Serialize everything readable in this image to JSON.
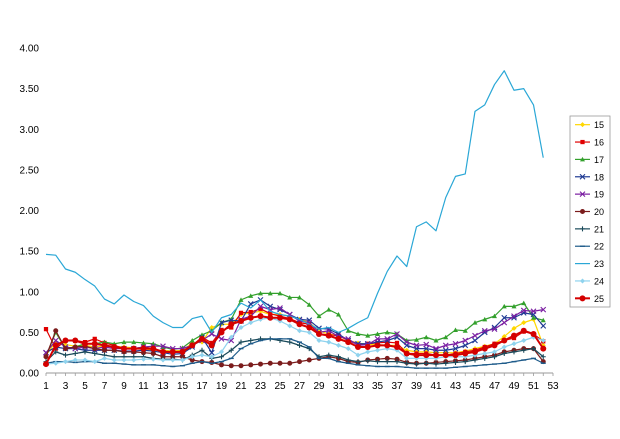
{
  "chart_data": {
    "type": "line",
    "x": [
      1,
      2,
      3,
      4,
      5,
      6,
      7,
      8,
      9,
      10,
      11,
      12,
      13,
      14,
      15,
      16,
      17,
      18,
      19,
      20,
      21,
      22,
      23,
      24,
      25,
      26,
      27,
      28,
      29,
      30,
      31,
      32,
      33,
      34,
      35,
      36,
      37,
      38,
      39,
      40,
      41,
      42,
      43,
      44,
      45,
      46,
      47,
      48,
      49,
      50,
      51,
      52
    ],
    "xticks": [
      1,
      3,
      5,
      7,
      9,
      11,
      13,
      15,
      17,
      19,
      21,
      23,
      25,
      27,
      29,
      31,
      33,
      35,
      37,
      39,
      41,
      43,
      45,
      47,
      49,
      51,
      53
    ],
    "yticks": [
      "0.00",
      "0.50",
      "1.00",
      "1.50",
      "2.00",
      "2.50",
      "3.00",
      "3.50",
      "4.00"
    ],
    "xlim": [
      1,
      53
    ],
    "ylim": [
      0,
      4
    ],
    "grid": false,
    "legend_position": "right",
    "series": [
      {
        "name": "15",
        "color": "#ffd700",
        "marker": "diamond",
        "values": [
          0.22,
          0.38,
          0.35,
          0.33,
          0.34,
          0.32,
          0.33,
          0.33,
          0.32,
          0.31,
          0.3,
          0.28,
          0.28,
          0.27,
          0.28,
          0.37,
          0.38,
          0.56,
          0.6,
          0.6,
          0.72,
          0.74,
          0.76,
          0.72,
          0.72,
          0.7,
          0.66,
          0.62,
          0.52,
          0.48,
          0.46,
          0.4,
          0.37,
          0.35,
          0.35,
          0.34,
          0.34,
          0.28,
          0.26,
          0.26,
          0.25,
          0.25,
          0.25,
          0.27,
          0.3,
          0.33,
          0.36,
          0.45,
          0.55,
          0.62,
          0.66,
          0.34
        ]
      },
      {
        "name": "16",
        "color": "#e00000",
        "marker": "square",
        "values": [
          0.54,
          0.3,
          0.4,
          0.4,
          0.38,
          0.42,
          0.37,
          0.34,
          0.3,
          0.3,
          0.32,
          0.3,
          0.26,
          0.25,
          0.26,
          0.34,
          0.44,
          0.37,
          0.53,
          0.56,
          0.74,
          0.75,
          0.79,
          0.73,
          0.7,
          0.67,
          0.62,
          0.6,
          0.48,
          0.47,
          0.46,
          0.4,
          0.35,
          0.36,
          0.37,
          0.38,
          0.37,
          0.24,
          0.24,
          0.24,
          0.22,
          0.22,
          0.24,
          0.26,
          0.28,
          0.32,
          0.36,
          0.4,
          0.43,
          0.51,
          0.48,
          0.39
        ]
      },
      {
        "name": "17",
        "color": "#33a02c",
        "marker": "triangle",
        "values": [
          0.21,
          0.5,
          0.3,
          0.32,
          0.36,
          0.36,
          0.38,
          0.36,
          0.38,
          0.38,
          0.37,
          0.36,
          0.32,
          0.29,
          0.31,
          0.4,
          0.47,
          0.52,
          0.62,
          0.66,
          0.9,
          0.95,
          0.98,
          0.98,
          0.98,
          0.93,
          0.93,
          0.84,
          0.7,
          0.78,
          0.72,
          0.52,
          0.48,
          0.46,
          0.48,
          0.5,
          0.48,
          0.4,
          0.41,
          0.44,
          0.4,
          0.44,
          0.53,
          0.52,
          0.62,
          0.66,
          0.7,
          0.82,
          0.82,
          0.86,
          0.68,
          0.65
        ]
      },
      {
        "name": "18",
        "color": "#1f3a93",
        "marker": "x",
        "values": [
          0.25,
          0.32,
          0.3,
          0.3,
          0.28,
          0.28,
          0.28,
          0.28,
          0.27,
          0.27,
          0.28,
          0.27,
          0.25,
          0.23,
          0.24,
          0.32,
          0.44,
          0.25,
          0.62,
          0.65,
          0.64,
          0.85,
          0.9,
          0.82,
          0.78,
          0.72,
          0.66,
          0.65,
          0.55,
          0.54,
          0.48,
          0.4,
          0.36,
          0.36,
          0.38,
          0.4,
          0.44,
          0.34,
          0.3,
          0.3,
          0.28,
          0.28,
          0.3,
          0.34,
          0.4,
          0.5,
          0.56,
          0.68,
          0.68,
          0.74,
          0.72,
          0.58
        ]
      },
      {
        "name": "19",
        "color": "#7b1fa2",
        "marker": "x",
        "values": [
          0.25,
          0.4,
          0.32,
          0.3,
          0.32,
          0.3,
          0.32,
          0.3,
          0.3,
          0.3,
          0.32,
          0.33,
          0.33,
          0.3,
          0.3,
          0.34,
          0.4,
          0.48,
          0.42,
          0.4,
          0.66,
          0.7,
          0.82,
          0.78,
          0.8,
          0.72,
          0.64,
          0.62,
          0.5,
          0.52,
          0.45,
          0.42,
          0.34,
          0.35,
          0.42,
          0.42,
          0.48,
          0.38,
          0.34,
          0.35,
          0.3,
          0.34,
          0.36,
          0.4,
          0.46,
          0.52,
          0.54,
          0.62,
          0.7,
          0.77,
          0.76,
          0.78
        ]
      },
      {
        "name": "20",
        "color": "#7b1c1c",
        "marker": "circle",
        "values": [
          0.2,
          0.52,
          0.3,
          0.32,
          0.33,
          0.3,
          0.28,
          0.28,
          0.26,
          0.26,
          0.25,
          0.24,
          0.2,
          0.2,
          0.2,
          0.16,
          0.14,
          0.13,
          0.1,
          0.09,
          0.09,
          0.1,
          0.11,
          0.12,
          0.12,
          0.12,
          0.14,
          0.16,
          0.18,
          0.2,
          0.18,
          0.14,
          0.13,
          0.16,
          0.17,
          0.18,
          0.17,
          0.13,
          0.12,
          0.12,
          0.13,
          0.14,
          0.15,
          0.16,
          0.18,
          0.2,
          0.22,
          0.26,
          0.28,
          0.3,
          0.3,
          0.14
        ]
      },
      {
        "name": "21",
        "color": "#1a4a5a",
        "marker": "plus",
        "values": [
          0.14,
          0.26,
          0.22,
          0.24,
          0.26,
          0.24,
          0.22,
          0.2,
          0.2,
          0.2,
          0.2,
          0.18,
          0.17,
          0.17,
          0.16,
          0.22,
          0.28,
          0.18,
          0.2,
          0.28,
          0.38,
          0.4,
          0.42,
          0.42,
          0.4,
          0.38,
          0.34,
          0.3,
          0.2,
          0.22,
          0.2,
          0.16,
          0.14,
          0.15,
          0.14,
          0.14,
          0.14,
          0.12,
          0.11,
          0.12,
          0.11,
          0.12,
          0.13,
          0.14,
          0.16,
          0.18,
          0.2,
          0.24,
          0.26,
          0.28,
          0.3,
          0.2
        ]
      },
      {
        "name": "22",
        "color": "#1e5b8a",
        "marker": "dash",
        "values": [
          0.12,
          0.14,
          0.14,
          0.13,
          0.14,
          0.14,
          0.12,
          0.12,
          0.11,
          0.1,
          0.1,
          0.1,
          0.09,
          0.08,
          0.09,
          0.12,
          0.14,
          0.12,
          0.14,
          0.18,
          0.3,
          0.36,
          0.4,
          0.42,
          0.42,
          0.42,
          0.38,
          0.32,
          0.18,
          0.18,
          0.14,
          0.12,
          0.1,
          0.09,
          0.08,
          0.08,
          0.08,
          0.07,
          0.06,
          0.06,
          0.06,
          0.06,
          0.07,
          0.08,
          0.09,
          0.1,
          0.11,
          0.12,
          0.14,
          0.16,
          0.18,
          0.12
        ]
      },
      {
        "name": "23",
        "color": "#2aa7d6",
        "marker": "none",
        "values": [
          1.46,
          1.45,
          1.28,
          1.24,
          1.15,
          1.07,
          0.91,
          0.85,
          0.96,
          0.88,
          0.83,
          0.7,
          0.62,
          0.56,
          0.56,
          0.67,
          0.7,
          0.5,
          0.68,
          0.72,
          0.86,
          0.8,
          0.9,
          0.76,
          0.72,
          0.7,
          0.66,
          0.6,
          0.54,
          0.56,
          0.5,
          0.55,
          0.62,
          0.68,
          0.98,
          1.25,
          1.44,
          1.31,
          1.8,
          1.86,
          1.75,
          2.16,
          2.42,
          2.45,
          3.22,
          3.3,
          3.55,
          3.72,
          3.48,
          3.5,
          3.3,
          2.65
        ]
      },
      {
        "name": "24",
        "color": "#8fd3ee",
        "marker": "diamond",
        "values": [
          0.11,
          0.12,
          0.14,
          0.16,
          0.16,
          0.14,
          0.18,
          0.16,
          0.16,
          0.16,
          0.17,
          0.17,
          0.16,
          0.16,
          0.16,
          0.2,
          0.22,
          0.2,
          0.26,
          0.44,
          0.56,
          0.62,
          0.66,
          0.68,
          0.64,
          0.58,
          0.52,
          0.5,
          0.4,
          0.38,
          0.34,
          0.3,
          0.22,
          0.26,
          0.28,
          0.3,
          0.28,
          0.18,
          0.18,
          0.18,
          0.18,
          0.2,
          0.2,
          0.2,
          0.22,
          0.24,
          0.26,
          0.32,
          0.36,
          0.4,
          0.44,
          0.4
        ]
      },
      {
        "name": "25",
        "color": "#d40000",
        "marker": "circle",
        "values": [
          0.11,
          0.34,
          0.4,
          0.4,
          0.36,
          0.36,
          0.34,
          0.32,
          0.3,
          0.3,
          0.3,
          0.3,
          0.26,
          0.26,
          0.26,
          0.34,
          0.42,
          0.34,
          0.5,
          0.6,
          0.64,
          0.68,
          0.7,
          0.68,
          0.68,
          0.66,
          0.6,
          0.56,
          0.48,
          0.46,
          0.42,
          0.38,
          0.32,
          0.32,
          0.34,
          0.34,
          0.32,
          0.24,
          0.22,
          0.22,
          0.22,
          0.22,
          0.22,
          0.24,
          0.26,
          0.3,
          0.34,
          0.4,
          0.46,
          0.52,
          0.48,
          0.3
        ]
      }
    ]
  }
}
